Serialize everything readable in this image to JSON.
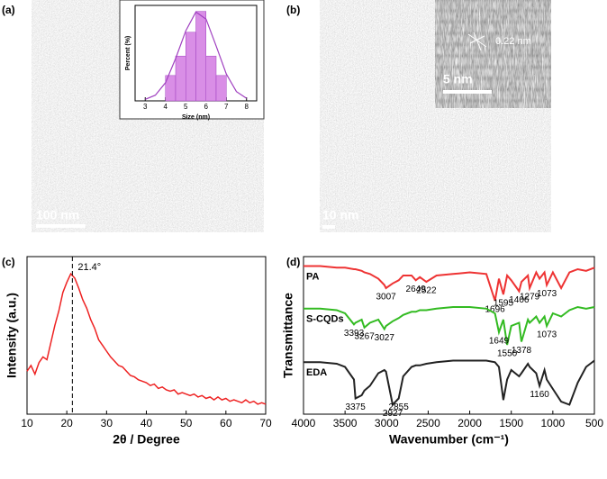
{
  "panels": {
    "a": {
      "label": "(a)",
      "scale_bar": "100 nm"
    },
    "b": {
      "label": "(b)",
      "scale_bar": "10 nm",
      "inset_scale_bar": "5 nm",
      "lattice_spacing": "0.22 nm"
    },
    "c": {
      "label": "(c)"
    },
    "d": {
      "label": "(d)"
    }
  },
  "chart_data": [
    {
      "type": "histogram",
      "xlabel": "Size (nm)",
      "ylabel": "Percent (%)",
      "bins": [
        4,
        4.5,
        5,
        5.5,
        6,
        6.5,
        7
      ],
      "values": [
        8.5,
        15,
        23,
        30,
        15,
        8.5
      ],
      "color": "#d98ee6",
      "xlim": [
        2.5,
        8.5
      ],
      "xticks": [
        3,
        4,
        5,
        6,
        7,
        8
      ],
      "ylim": [
        0,
        32
      ],
      "fit_curve": {
        "color": "#a040c0",
        "x": [
          3,
          3.5,
          4,
          4.5,
          5,
          5.5,
          6,
          6.5,
          7,
          7.5,
          8
        ],
        "values": [
          0.5,
          1.9,
          6.1,
          14.2,
          23.5,
          29.8,
          27.4,
          18.4,
          9.0,
          3.1,
          0.8
        ]
      }
    },
    {
      "type": "line",
      "xlabel": "2θ / Degree",
      "ylabel": "Intensity (a.u.)",
      "color": "#ee2222",
      "xlim": [
        10,
        70
      ],
      "xticks": [
        10,
        20,
        30,
        40,
        50,
        60,
        70
      ],
      "ylim": [
        0,
        110
      ],
      "peak_marker": {
        "value": 21.4,
        "label": "21.4°"
      },
      "x": [
        10,
        11,
        12,
        13,
        14,
        15,
        16,
        17,
        18,
        19,
        20,
        21,
        22,
        23,
        24,
        25,
        26,
        27,
        28,
        29,
        30,
        31,
        32,
        33,
        34,
        35,
        36,
        37,
        38,
        39,
        40,
        41,
        42,
        43,
        44,
        45,
        46,
        47,
        48,
        49,
        50,
        51,
        52,
        53,
        54,
        55,
        56,
        57,
        58,
        59,
        60,
        61,
        62,
        63,
        64,
        65,
        66,
        67,
        68,
        69,
        70
      ],
      "values": [
        30,
        34,
        28,
        36,
        40,
        38,
        50,
        62,
        72,
        85,
        92,
        98,
        95,
        88,
        80,
        74,
        66,
        60,
        52,
        48,
        44,
        40,
        37,
        34,
        33,
        30,
        27,
        26,
        24,
        23,
        22,
        20,
        21,
        18,
        19,
        17,
        16,
        17,
        14,
        15,
        14,
        13,
        14,
        12,
        13,
        11,
        12,
        10,
        12,
        10,
        11,
        9,
        10,
        9,
        8,
        10,
        8,
        9,
        7,
        8,
        7
      ]
    },
    {
      "type": "multiline",
      "xlabel": "Wavenumber (cm⁻¹)",
      "ylabel": "Transmittance",
      "xlim": [
        4000,
        500
      ],
      "xticks": [
        4000,
        3500,
        3000,
        2500,
        2000,
        1500,
        1000,
        500
      ],
      "ylim": [
        0,
        100
      ],
      "x": [
        4000,
        3800,
        3600,
        3500,
        3393,
        3375,
        3300,
        3267,
        3200,
        3100,
        3027,
        3007,
        2927,
        2855,
        2800,
        2700,
        2649,
        2600,
        2522,
        2400,
        2200,
        2000,
        1800,
        1696,
        1649,
        1595,
        1550,
        1500,
        1406,
        1378,
        1300,
        1279,
        1200,
        1160,
        1100,
        1073,
        1000,
        900,
        800,
        700,
        600,
        500
      ],
      "series": [
        {
          "name": "PA",
          "color": "#ee3333",
          "peaks": [
            3007,
            2649,
            2522,
            1696,
            1595,
            1406,
            1279,
            1073
          ],
          "values": [
            94,
            94,
            93,
            93,
            92,
            92,
            91,
            90,
            89,
            86,
            82,
            80,
            83,
            85,
            88,
            88,
            85,
            87,
            84,
            88,
            89,
            90,
            89,
            72,
            86,
            76,
            88,
            85,
            78,
            84,
            88,
            80,
            90,
            86,
            90,
            82,
            90,
            80,
            90,
            92,
            91,
            93
          ]
        },
        {
          "name": "S-CQDs",
          "color": "#33bb22",
          "peaks": [
            3393,
            3267,
            3027,
            1649,
            1550,
            1378,
            1073
          ],
          "values": [
            67,
            67,
            66,
            64,
            57,
            58,
            60,
            55,
            58,
            60,
            54,
            56,
            59,
            61,
            63,
            65,
            65,
            66,
            66,
            67,
            68,
            68,
            67,
            64,
            52,
            60,
            44,
            56,
            58,
            46,
            60,
            58,
            62,
            58,
            62,
            56,
            64,
            62,
            66,
            68,
            67,
            68
          ]
        },
        {
          "name": "EDA",
          "color": "#222222",
          "peaks": [
            3375,
            2927,
            2855,
            1160
          ],
          "values": [
            33,
            33,
            32,
            30,
            22,
            10,
            12,
            15,
            18,
            26,
            28,
            27,
            6,
            10,
            24,
            30,
            31,
            31,
            32,
            33,
            34,
            34,
            34,
            33,
            30,
            9,
            22,
            28,
            24,
            26,
            32,
            30,
            26,
            18,
            28,
            22,
            16,
            8,
            6,
            20,
            30,
            34
          ]
        }
      ]
    }
  ]
}
